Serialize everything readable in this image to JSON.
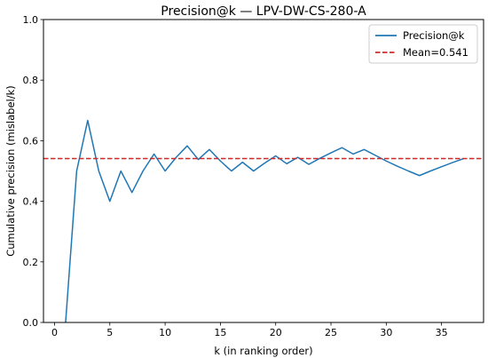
{
  "chart_data": {
    "type": "line",
    "title": "Precision@k — LPV-DW-CS-280-A",
    "xlabel": "k (in ranking order)",
    "ylabel": "Cumulative precision (mislabel/k)",
    "xlim": [
      -1,
      38.8
    ],
    "ylim": [
      0.0,
      1.0
    ],
    "xticks": [
      0,
      5,
      10,
      15,
      20,
      25,
      30,
      35
    ],
    "yticks": [
      0.0,
      0.2,
      0.4,
      0.6,
      0.8,
      1.0
    ],
    "xtick_labels": [
      "0",
      "5",
      "10",
      "15",
      "20",
      "25",
      "30",
      "35"
    ],
    "ytick_labels": [
      "0.0",
      "0.2",
      "0.4",
      "0.6",
      "0.8",
      "1.0"
    ],
    "grid": false,
    "legend_position": "top-right",
    "series": [
      {
        "name": "Precision@k",
        "color": "#1f77b4",
        "style": "solid",
        "x": [
          1,
          2,
          3,
          4,
          5,
          6,
          7,
          8,
          9,
          10,
          11,
          12,
          13,
          14,
          15,
          16,
          17,
          18,
          19,
          20,
          21,
          22,
          23,
          24,
          25,
          26,
          27,
          28,
          29,
          30,
          31,
          32,
          33,
          34,
          35,
          36,
          37
        ],
        "values": [
          0.0,
          0.5,
          0.667,
          0.5,
          0.4,
          0.5,
          0.429,
          0.5,
          0.556,
          0.5,
          0.545,
          0.583,
          0.538,
          0.571,
          0.533,
          0.5,
          0.529,
          0.5,
          0.526,
          0.55,
          0.524,
          0.545,
          0.522,
          0.542,
          0.56,
          0.577,
          0.556,
          0.571,
          0.552,
          0.533,
          0.516,
          0.5,
          0.485,
          0.5,
          0.514,
          0.528,
          0.541
        ]
      }
    ],
    "reference_lines": [
      {
        "name": "Mean=0.541",
        "y": 0.541,
        "color": "#d62728",
        "style": "dashed"
      }
    ]
  }
}
